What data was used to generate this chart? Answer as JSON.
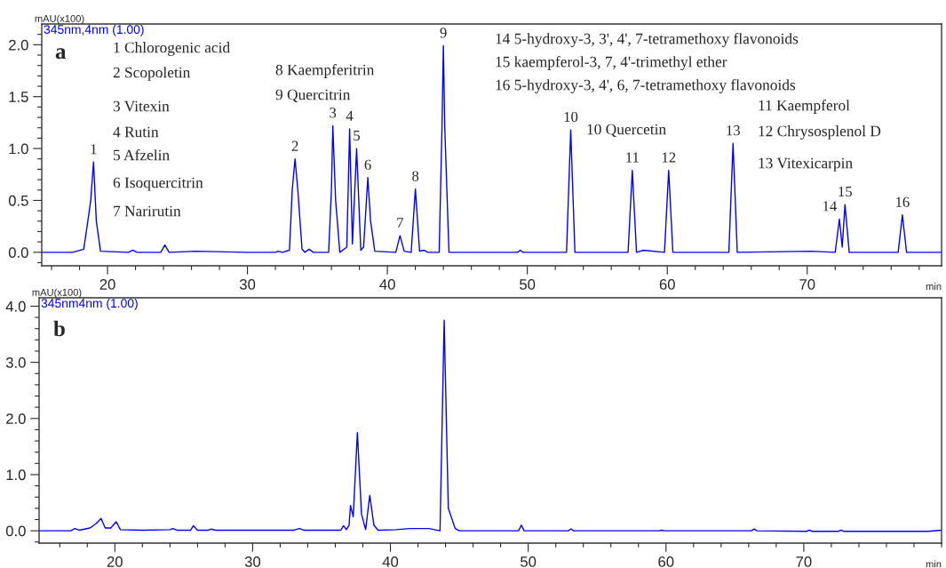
{
  "chart_data": [
    {
      "type": "line",
      "xlabel": "min",
      "ylabel": "mAU(x100)",
      "series": [
        {
          "name": "345nm,4nm (1.00)",
          "color": "#0000ff",
          "x": [
            15.3,
            17.5,
            18.3,
            18.7,
            18.8,
            19.0,
            19.2,
            19.5,
            21.5,
            21.8,
            22.1,
            23.8,
            24.1,
            24.4,
            26.3,
            30,
            32.0,
            32.2,
            32.5,
            33.0,
            33.2,
            33.4,
            33.6,
            33.9,
            34.1,
            34.4,
            34.7,
            35.8,
            36.0,
            36.1,
            36.3,
            36.6,
            37.1,
            37.3,
            37.5,
            37.8,
            38.1,
            38.3,
            38.6,
            38.8,
            39.1,
            40.6,
            40.9,
            41.2,
            41.7,
            42.0,
            42.3,
            42.6,
            42.9,
            43.7,
            43.9,
            44.0,
            44.1,
            44.4,
            49.3,
            49.5,
            49.7,
            52.8,
            53.1,
            53.4,
            57.2,
            57.5,
            57.8,
            58.3,
            59.8,
            60.1,
            60.4,
            64.4,
            64.7,
            65.0,
            70.3,
            72.0,
            72.3,
            72.5,
            72.7,
            73.0,
            76.5,
            76.8,
            77.1,
            79.6
          ],
          "values": [
            0,
            0,
            0.03,
            0.4,
            0.5,
            0.87,
            0.3,
            0.01,
            0,
            0.02,
            0,
            0,
            0.07,
            0,
            0.01,
            0,
            0,
            0.01,
            0,
            0.02,
            0.6,
            0.9,
            0.6,
            0.03,
            0,
            0.03,
            0,
            0,
            0.6,
            1.22,
            0.5,
            0,
            0.05,
            1.19,
            0.08,
            1.0,
            0.02,
            0.05,
            0.72,
            0.3,
            0.01,
            0,
            0.16,
            0.01,
            0,
            0.61,
            0.01,
            0.02,
            0,
            0,
            1.2,
            1.99,
            1.2,
            0,
            0,
            0.02,
            0,
            0,
            1.18,
            0,
            0,
            0.79,
            0,
            0.02,
            0,
            0.79,
            0,
            0,
            1.05,
            0,
            0.01,
            0,
            0.32,
            0.05,
            0.46,
            0,
            0,
            0.36,
            0,
            0
          ]
        }
      ],
      "xlim": [
        15.3,
        79.6
      ],
      "ylim": [
        -0.13,
        2.2
      ],
      "xticks": [
        {
          "value": 16,
          "label": null
        },
        {
          "value": 18,
          "label": null
        },
        20,
        {
          "value": 22,
          "label": null
        },
        {
          "value": 24,
          "label": null
        },
        {
          "value": 26,
          "label": null
        },
        {
          "value": 28,
          "label": null
        },
        30,
        {
          "value": 32,
          "label": null
        },
        {
          "value": 34,
          "label": null
        },
        {
          "value": 36,
          "label": null
        },
        {
          "value": 38,
          "label": null
        },
        40,
        {
          "value": 42,
          "label": null
        },
        {
          "value": 44,
          "label": null
        },
        {
          "value": 46,
          "label": null
        },
        {
          "value": 48,
          "label": null
        },
        50,
        {
          "value": 52,
          "label": null
        },
        {
          "value": 54,
          "label": null
        },
        {
          "value": 56,
          "label": null
        },
        {
          "value": 58,
          "label": null
        },
        60,
        {
          "value": 62,
          "label": null
        },
        {
          "value": 64,
          "label": null
        },
        {
          "value": 66,
          "label": null
        },
        {
          "value": 68,
          "label": null
        },
        70,
        {
          "value": 72,
          "label": null
        },
        {
          "value": 74,
          "label": null
        },
        {
          "value": 76,
          "label": null
        },
        {
          "value": 78,
          "label": null
        }
      ],
      "yticks": [
        {
          "value": -0.1,
          "label": null
        },
        {
          "value": 0,
          "label": "0.0"
        },
        {
          "value": 0.1,
          "label": null
        },
        {
          "value": 0.2,
          "label": null
        },
        {
          "value": 0.3,
          "label": null
        },
        {
          "value": 0.4,
          "label": null
        },
        0.5,
        {
          "value": 0.6,
          "label": null
        },
        {
          "value": 0.7,
          "label": null
        },
        {
          "value": 0.8,
          "label": null
        },
        {
          "value": 0.9,
          "label": null
        },
        {
          "value": 1,
          "label": "1.0"
        },
        {
          "value": 1.1,
          "label": null
        },
        {
          "value": 1.2,
          "label": null
        },
        {
          "value": 1.3,
          "label": null
        },
        {
          "value": 1.4,
          "label": null
        },
        1.5,
        {
          "value": 1.6,
          "label": null
        },
        {
          "value": 1.7,
          "label": null
        },
        {
          "value": 1.8,
          "label": null
        },
        {
          "value": 1.9,
          "label": null
        },
        {
          "value": 2,
          "label": "2.0"
        },
        {
          "value": 2.1,
          "label": null
        }
      ],
      "annotations": [
        "a",
        "1 Chlorogenic acid",
        "2 Scopoletin",
        "3 Vitexin",
        "4 Rutin",
        "5 Afzelin",
        "6 Isoquercitrin",
        "7 Narirutin",
        "8 Kaempferitrin",
        "9 Quercitrin",
        "14 5-hydroxy-3, 3', 4', 7-tetramethoxy flavonoids",
        "15 kaempferol-3, 7, 4'-trimethyl ether",
        "16 5-hydroxy-3, 4', 6, 7-tetramethoxy flavonoids",
        "10 Quercetin",
        "11 Kaempferol",
        "12 Chrysosplenol D",
        "13 Vitexicarpin",
        {
          "text": "1",
          "x": 19.0,
          "y": 0.87
        },
        {
          "text": "2",
          "x": 33.4,
          "y": 0.9
        },
        {
          "text": "3",
          "x": 36.1,
          "y": 1.22
        },
        {
          "text": "4",
          "x": 37.3,
          "y": 1.19
        },
        {
          "text": "5",
          "x": 37.8,
          "y": 1.0
        },
        {
          "text": "6",
          "x": 38.6,
          "y": 0.72
        },
        {
          "text": "7",
          "x": 40.9,
          "y": 0.16
        },
        {
          "text": "8",
          "x": 42.0,
          "y": 0.61
        },
        {
          "text": "9",
          "x": 44.0,
          "y": 1.99
        },
        {
          "text": "10",
          "x": 53.1,
          "y": 1.18
        },
        {
          "text": "11",
          "x": 57.5,
          "y": 0.79
        },
        {
          "text": "12",
          "x": 60.1,
          "y": 0.79
        },
        {
          "text": "13",
          "x": 64.7,
          "y": 1.05
        },
        {
          "text": "14",
          "x": 72.3,
          "y": 0.32
        },
        {
          "text": "15",
          "x": 72.7,
          "y": 0.46
        },
        {
          "text": "16",
          "x": 76.8,
          "y": 0.36
        }
      ]
    },
    {
      "type": "line",
      "xlabel": "min",
      "ylabel": "mAU(x100)",
      "series": [
        {
          "name": "345nm4nm (1.00)",
          "color": "#0000ff",
          "x": [
            14.5,
            16.8,
            17.1,
            17.4,
            18.2,
            18.6,
            19.0,
            19.3,
            19.7,
            20.1,
            20.4,
            22.0,
            24.0,
            24.2,
            24.5,
            25.5,
            25.7,
            26.0,
            26.8,
            27.0,
            27.3,
            29.5,
            33.0,
            33.1,
            33.4,
            33.7,
            36.4,
            36.6,
            36.8,
            37.0,
            37.1,
            37.3,
            37.6,
            37.9,
            38.2,
            38.5,
            38.8,
            39.1,
            40.4,
            41.4,
            42.8,
            43.6,
            43.9,
            44.2,
            44.7,
            45.0,
            49.3,
            49.5,
            49.7,
            52.9,
            53.1,
            53.3,
            59.5,
            59.7,
            59.9,
            66.2,
            66.4,
            66.6,
            70.2,
            70.4,
            70.6,
            72.5,
            72.7,
            72.9,
            79.0,
            80.0
          ],
          "values": [
            0,
            0,
            0.04,
            0.01,
            0.05,
            0.12,
            0.22,
            0.05,
            0.05,
            0.16,
            0.02,
            0.01,
            0.02,
            0.04,
            0.01,
            0.01,
            0.09,
            0.01,
            0.01,
            0.03,
            0.01,
            0.01,
            0.01,
            0.02,
            0.04,
            0.01,
            0.01,
            0.09,
            0.02,
            0.1,
            0.45,
            0.25,
            1.75,
            0.3,
            0.02,
            0.63,
            0.1,
            0.01,
            0.02,
            0.04,
            0.04,
            0,
            3.75,
            0.4,
            0.04,
            0,
            0,
            0.1,
            0,
            0,
            0.03,
            0,
            0,
            0.01,
            0,
            0,
            0.03,
            0,
            -0.01,
            0.01,
            -0.01,
            -0.01,
            0.01,
            -0.01,
            -0.01,
            0.01
          ]
        }
      ],
      "xlim": [
        14.5,
        80.0
      ],
      "ylim": [
        -0.22,
        4.15
      ],
      "xticks": [
        {
          "value": 16,
          "label": null
        },
        {
          "value": 18,
          "label": null
        },
        20,
        {
          "value": 22,
          "label": null
        },
        {
          "value": 24,
          "label": null
        },
        {
          "value": 26,
          "label": null
        },
        {
          "value": 28,
          "label": null
        },
        30,
        {
          "value": 32,
          "label": null
        },
        {
          "value": 34,
          "label": null
        },
        {
          "value": 36,
          "label": null
        },
        {
          "value": 38,
          "label": null
        },
        40,
        {
          "value": 42,
          "label": null
        },
        {
          "value": 44,
          "label": null
        },
        {
          "value": 46,
          "label": null
        },
        {
          "value": 48,
          "label": null
        },
        50,
        {
          "value": 52,
          "label": null
        },
        {
          "value": 54,
          "label": null
        },
        {
          "value": 56,
          "label": null
        },
        {
          "value": 58,
          "label": null
        },
        60,
        {
          "value": 62,
          "label": null
        },
        {
          "value": 64,
          "label": null
        },
        {
          "value": 66,
          "label": null
        },
        {
          "value": 68,
          "label": null
        },
        70,
        {
          "value": 72,
          "label": null
        },
        {
          "value": 74,
          "label": null
        },
        {
          "value": 76,
          "label": null
        },
        {
          "value": 78,
          "label": null
        },
        {
          "value": 80,
          "label": null
        }
      ],
      "yticks": [
        {
          "value": -0.2,
          "label": null
        },
        {
          "value": 0,
          "label": "0.0"
        },
        {
          "value": 0.2,
          "label": null
        },
        {
          "value": 0.4,
          "label": null
        },
        {
          "value": 0.6,
          "label": null
        },
        {
          "value": 0.8,
          "label": null
        },
        {
          "value": 1,
          "label": "1.0"
        },
        {
          "value": 1.2,
          "label": null
        },
        {
          "value": 1.4,
          "label": null
        },
        {
          "value": 1.6,
          "label": null
        },
        {
          "value": 1.8,
          "label": null
        },
        {
          "value": 2,
          "label": "2.0"
        },
        {
          "value": 2.2,
          "label": null
        },
        {
          "value": 2.4,
          "label": null
        },
        {
          "value": 2.6,
          "label": null
        },
        {
          "value": 2.8,
          "label": null
        },
        {
          "value": 3,
          "label": "3.0"
        },
        {
          "value": 3.2,
          "label": null
        },
        {
          "value": 3.4,
          "label": null
        },
        {
          "value": 3.6,
          "label": null
        },
        {
          "value": 3.8,
          "label": null
        },
        {
          "value": 4,
          "label": "4.0"
        }
      ],
      "annotations": [
        "b"
      ]
    }
  ]
}
